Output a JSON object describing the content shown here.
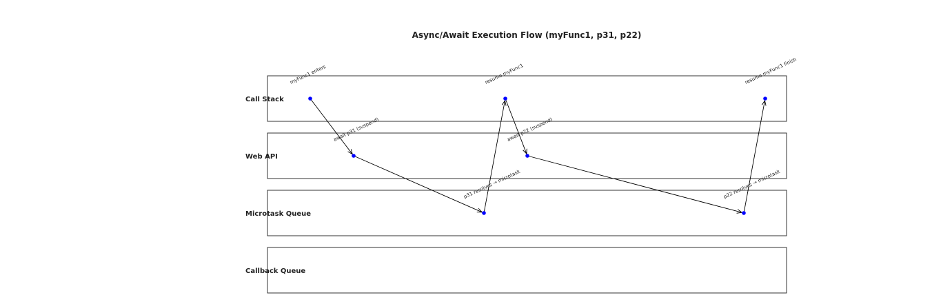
{
  "title": "Async/Await Execution Flow (myFunc1, p31, p22)",
  "colors": {
    "point": "#0000ff",
    "arrow": "#000000",
    "lane_border": "#333333",
    "text": "#222222"
  },
  "lanes": [
    {
      "id": "call_stack",
      "label": "Call Stack"
    },
    {
      "id": "web_api",
      "label": "Web API"
    },
    {
      "id": "microtask_queue",
      "label": "Microtask Queue"
    },
    {
      "id": "callback_queue",
      "label": "Callback Queue"
    }
  ],
  "events": [
    {
      "id": "e1",
      "lane": "call_stack",
      "step": 1,
      "label": "myFunc1 enters"
    },
    {
      "id": "e2",
      "lane": "web_api",
      "step": 2,
      "label": "await p31 (suspend)"
    },
    {
      "id": "e3",
      "lane": "microtask_queue",
      "step": 3,
      "label": "p31 resolves → microtask"
    },
    {
      "id": "e4",
      "lane": "call_stack",
      "step": 4,
      "label": "resume myFunc1"
    },
    {
      "id": "e5",
      "lane": "web_api",
      "step": 5,
      "label": "await p22 (suspend)"
    },
    {
      "id": "e6",
      "lane": "microtask_queue",
      "step": 6,
      "label": "p22 resolves → microtask"
    },
    {
      "id": "e7",
      "lane": "call_stack",
      "step": 7,
      "label": "resume myFunc1 finish"
    }
  ],
  "transitions": [
    {
      "from": "e1",
      "to": "e2"
    },
    {
      "from": "e2",
      "to": "e3"
    },
    {
      "from": "e3",
      "to": "e4"
    },
    {
      "from": "e4",
      "to": "e5"
    },
    {
      "from": "e5",
      "to": "e6"
    },
    {
      "from": "e6",
      "to": "e7"
    }
  ]
}
